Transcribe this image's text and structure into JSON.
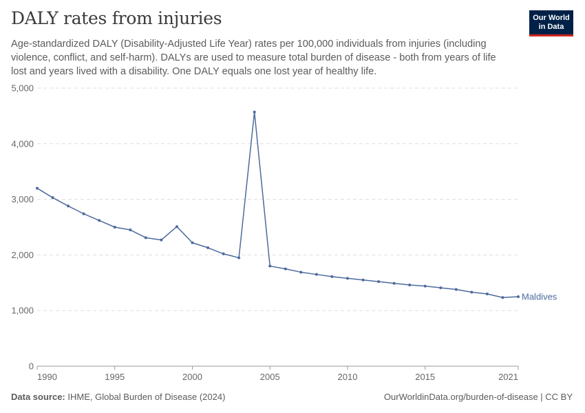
{
  "header": {
    "title": "DALY rates from injuries",
    "subtitle": "Age-standardized DALY (Disability-Adjusted Life Year) rates per 100,000 individuals from injuries (including violence, conflict, and self-harm). DALYs are used to measure total burden of disease - both from years of life lost and years lived with a disability. One DALY equals one lost year of healthy life.",
    "logo_line1": "Our World",
    "logo_line2": "in Data"
  },
  "footer": {
    "source_label": "Data source:",
    "source_text": "IHME, Global Burden of Disease (2024)",
    "url_text": "OurWorldinData.org/burden-of-disease | CC BY"
  },
  "colors": {
    "series": "#4c6a9c",
    "grid": "#dddddd",
    "axis": "#999999",
    "tick_text": "#666666",
    "brand": "#002147",
    "brand_accent": "#ce261e"
  },
  "chart_data": {
    "type": "line",
    "title": "DALY rates from injuries",
    "xlabel": "",
    "ylabel": "",
    "xlim": [
      1990,
      2021
    ],
    "ylim": [
      0,
      5000
    ],
    "x_ticks": [
      1990,
      1995,
      2000,
      2005,
      2010,
      2015,
      2021
    ],
    "x_tick_labels": [
      "1990",
      "1995",
      "2000",
      "2005",
      "2010",
      "2015",
      "2021"
    ],
    "y_ticks": [
      0,
      1000,
      2000,
      3000,
      4000,
      5000
    ],
    "y_tick_labels": [
      "0",
      "1,000",
      "2,000",
      "3,000",
      "4,000",
      "5,000"
    ],
    "grid": "horizontal dashed",
    "legend": "end-of-line label",
    "series": [
      {
        "name": "Maldives",
        "x": [
          1990,
          1991,
          1992,
          1993,
          1994,
          1995,
          1996,
          1997,
          1998,
          1999,
          2000,
          2001,
          2002,
          2003,
          2004,
          2005,
          2006,
          2007,
          2008,
          2009,
          2010,
          2011,
          2012,
          2013,
          2014,
          2015,
          2016,
          2017,
          2018,
          2019,
          2020,
          2021
        ],
        "values": [
          3200,
          3030,
          2880,
          2740,
          2620,
          2500,
          2450,
          2310,
          2270,
          2510,
          2220,
          2130,
          2020,
          1950,
          4570,
          1800,
          1750,
          1690,
          1650,
          1610,
          1580,
          1550,
          1520,
          1490,
          1460,
          1440,
          1410,
          1380,
          1330,
          1300,
          1235,
          1250
        ]
      }
    ]
  }
}
